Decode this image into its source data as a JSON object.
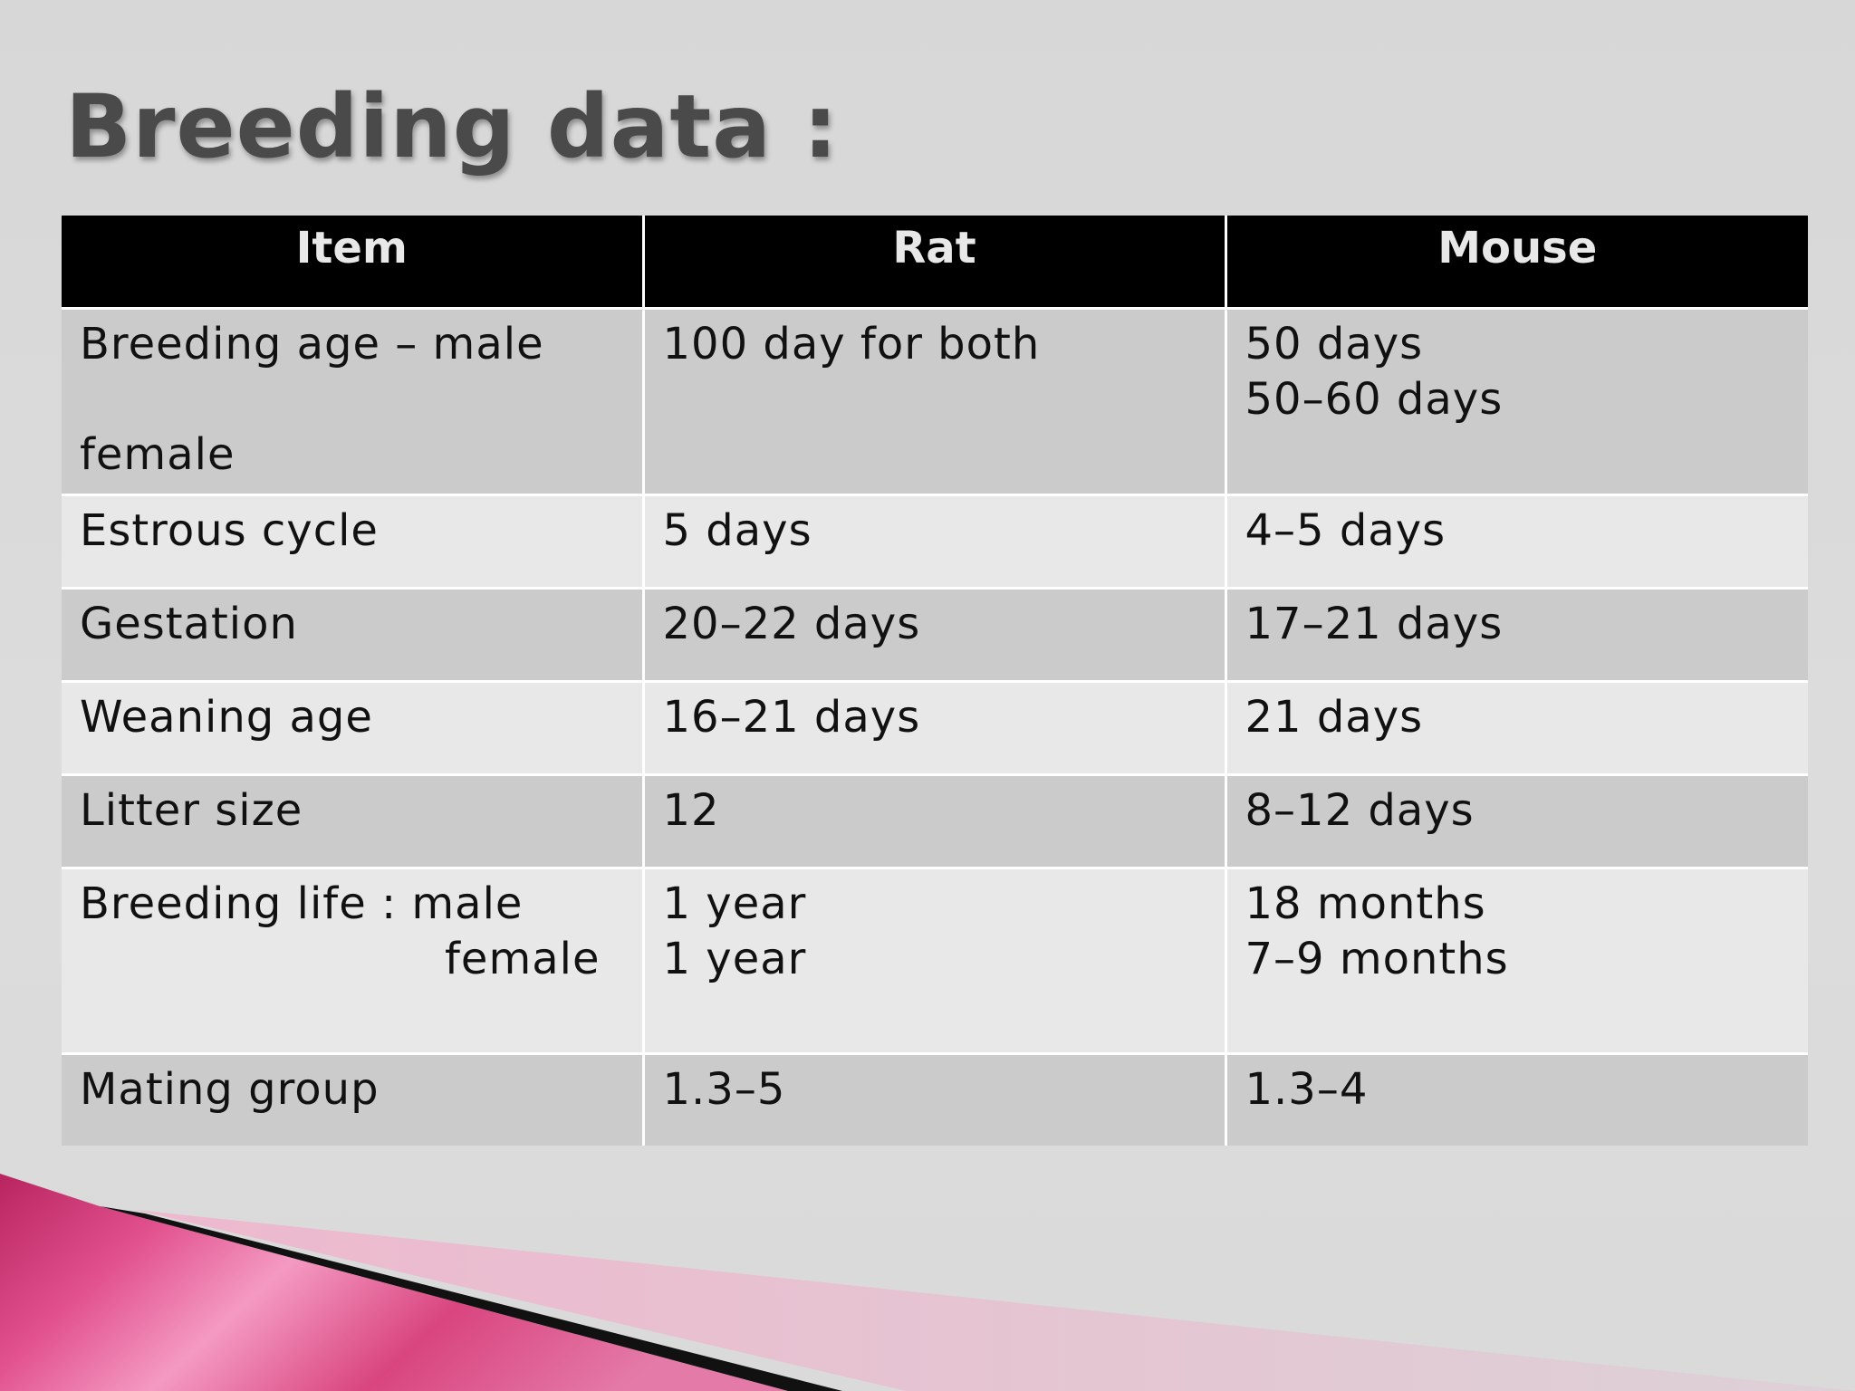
{
  "slide": {
    "title": "Breeding data :"
  },
  "table": {
    "headers": [
      "Item",
      "Rat",
      "Mouse"
    ],
    "rows": [
      {
        "item_line1": "Breeding age – male",
        "item_line2": "female",
        "rat": "100 day for both",
        "mouse_line1": "50 days",
        "mouse_line2": "50–60 days"
      },
      {
        "item": "Estrous cycle",
        "rat": "5 days",
        "mouse": "4–5 days"
      },
      {
        "item": "Gestation",
        "rat": "20–22 days",
        "mouse": "17–21 days"
      },
      {
        "item": "Weaning age",
        "rat": "16–21 days",
        "mouse": "21 days"
      },
      {
        "item": "Litter size",
        "rat": "12",
        "mouse": "8–12 days"
      },
      {
        "item_line1": "Breeding life : male",
        "item_line2": "female",
        "rat_line1": "1 year",
        "rat_line2": "1 year",
        "mouse_line1": "18 months",
        "mouse_line2": "7–9 months"
      },
      {
        "item": "Mating group",
        "rat": "1.3–5",
        "mouse": "1.3–4"
      }
    ]
  },
  "colors": {
    "header_bg": "#000000",
    "row_dark": "#cbcbcb",
    "row_light": "#e8e8e8",
    "ribbon_pink": "#d9457f",
    "ribbon_light": "#e8b9cc"
  }
}
